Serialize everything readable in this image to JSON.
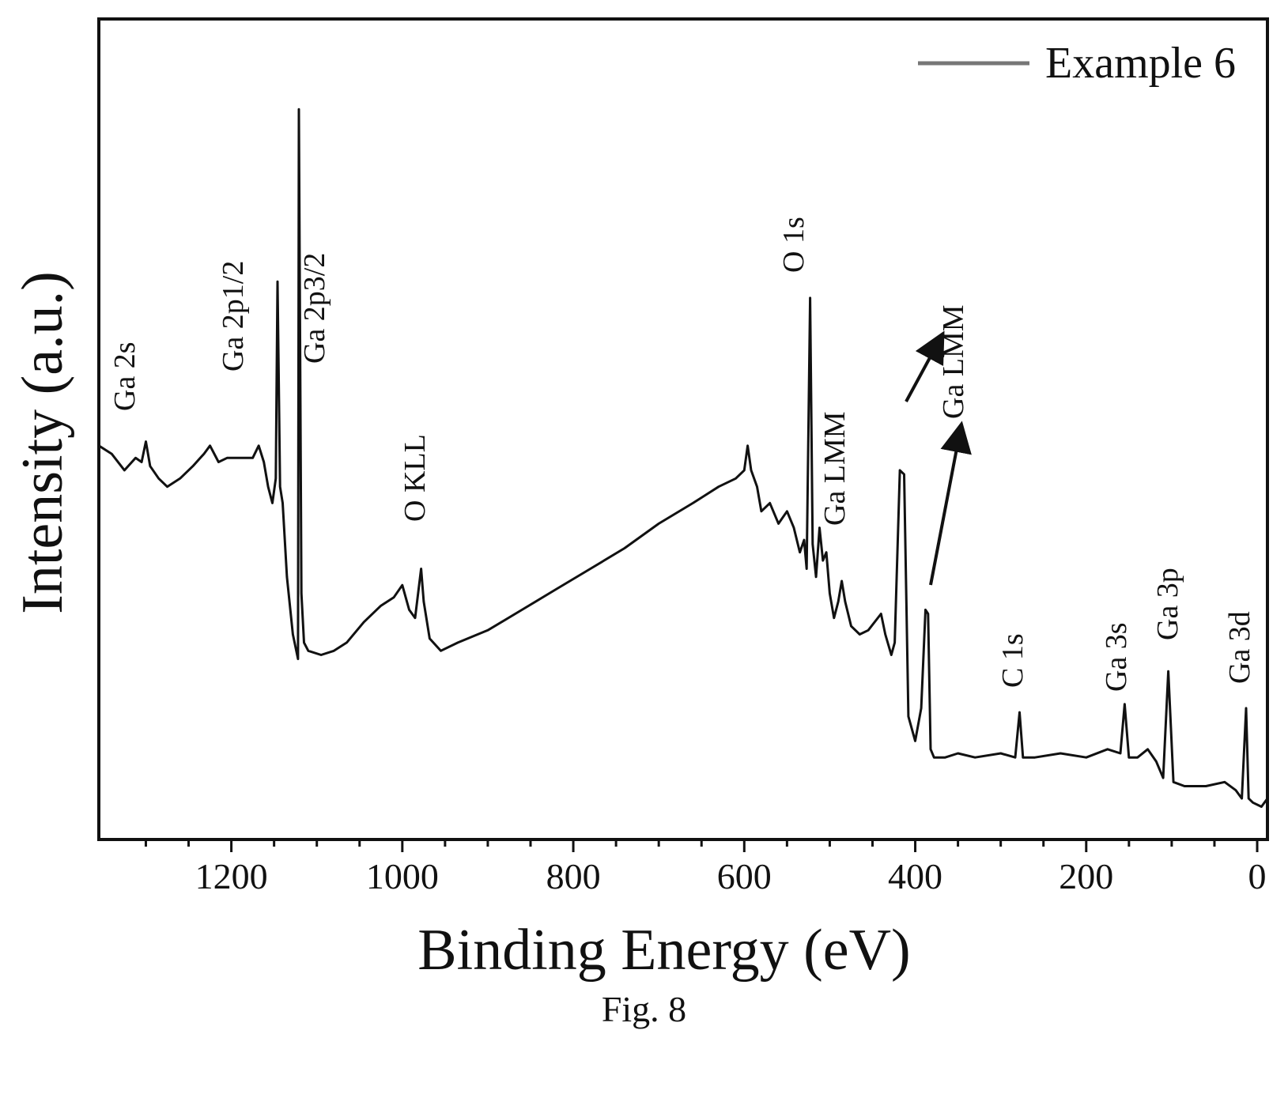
{
  "figure_caption": "Fig. 8",
  "chart_data": {
    "type": "line",
    "title": "",
    "xlabel": "Binding Energy (eV)",
    "ylabel": "Intensity (a.u.)",
    "xlim": [
      1355,
      -12
    ],
    "x_reversed": true,
    "ylim": [
      0,
      100
    ],
    "y_ticks_labeled": false,
    "grid": false,
    "legend": {
      "position": "top-right",
      "entries": [
        "Example 6"
      ]
    },
    "x_ticks": [
      1200,
      1000,
      800,
      600,
      400,
      200,
      0
    ],
    "x_tick_labels": [
      "1200",
      "1000",
      "800",
      "600",
      "400",
      "200",
      "0"
    ],
    "series": [
      {
        "name": "Example 6",
        "color": "#111111",
        "points": [
          [
            1355,
            48
          ],
          [
            1340,
            47
          ],
          [
            1325,
            45
          ],
          [
            1312,
            46.5
          ],
          [
            1305,
            46
          ],
          [
            1300,
            48.5
          ],
          [
            1295,
            45.5
          ],
          [
            1285,
            44
          ],
          [
            1275,
            43
          ],
          [
            1260,
            44
          ],
          [
            1245,
            45.5
          ],
          [
            1232,
            47
          ],
          [
            1225,
            48
          ],
          [
            1215,
            46
          ],
          [
            1205,
            46.5
          ],
          [
            1190,
            46.5
          ],
          [
            1175,
            46.5
          ],
          [
            1168,
            48
          ],
          [
            1162,
            46
          ],
          [
            1157,
            43
          ],
          [
            1152,
            41
          ],
          [
            1148,
            44
          ],
          [
            1146,
            68
          ],
          [
            1143,
            43
          ],
          [
            1140,
            41
          ],
          [
            1135,
            32
          ],
          [
            1128,
            25
          ],
          [
            1122,
            22
          ],
          [
            1121,
            89
          ],
          [
            1118,
            30
          ],
          [
            1115,
            24
          ],
          [
            1110,
            23
          ],
          [
            1095,
            22.5
          ],
          [
            1080,
            23
          ],
          [
            1065,
            24
          ],
          [
            1045,
            26.5
          ],
          [
            1025,
            28.5
          ],
          [
            1010,
            29.5
          ],
          [
            1000,
            31
          ],
          [
            992,
            28
          ],
          [
            985,
            27
          ],
          [
            978,
            33
          ],
          [
            975,
            29
          ],
          [
            968,
            24.5
          ],
          [
            955,
            23
          ],
          [
            935,
            24
          ],
          [
            900,
            25.5
          ],
          [
            860,
            28
          ],
          [
            820,
            30.5
          ],
          [
            780,
            33
          ],
          [
            740,
            35.5
          ],
          [
            700,
            38.5
          ],
          [
            660,
            41
          ],
          [
            630,
            43
          ],
          [
            610,
            44
          ],
          [
            600,
            45
          ],
          [
            596,
            48
          ],
          [
            592,
            45
          ],
          [
            585,
            43
          ],
          [
            580,
            40
          ],
          [
            570,
            41
          ],
          [
            560,
            38.5
          ],
          [
            550,
            40
          ],
          [
            542,
            38
          ],
          [
            535,
            35
          ],
          [
            530,
            36.5
          ],
          [
            527,
            33
          ],
          [
            523,
            66
          ],
          [
            520,
            36
          ],
          [
            516,
            32
          ],
          [
            512,
            38
          ],
          [
            508,
            34
          ],
          [
            504,
            35
          ],
          [
            500,
            30
          ],
          [
            495,
            27
          ],
          [
            490,
            29
          ],
          [
            486,
            31.5
          ],
          [
            482,
            29
          ],
          [
            475,
            26
          ],
          [
            465,
            25
          ],
          [
            455,
            25.5
          ],
          [
            440,
            27.5
          ],
          [
            435,
            25
          ],
          [
            428,
            22.5
          ],
          [
            424,
            24
          ],
          [
            418,
            45
          ],
          [
            413,
            44.5
          ],
          [
            408,
            15
          ],
          [
            400,
            12
          ],
          [
            393,
            16
          ],
          [
            388,
            28
          ],
          [
            385,
            27.5
          ],
          [
            382,
            11
          ],
          [
            378,
            10
          ],
          [
            365,
            10
          ],
          [
            350,
            10.5
          ],
          [
            330,
            10
          ],
          [
            300,
            10.5
          ],
          [
            283,
            10
          ],
          [
            278,
            15.5
          ],
          [
            274,
            10
          ],
          [
            260,
            10
          ],
          [
            230,
            10.5
          ],
          [
            200,
            10
          ],
          [
            175,
            11
          ],
          [
            160,
            10.5
          ],
          [
            155,
            16.5
          ],
          [
            150,
            10
          ],
          [
            140,
            10
          ],
          [
            128,
            11
          ],
          [
            118,
            9.5
          ],
          [
            110,
            7.5
          ],
          [
            104,
            20.5
          ],
          [
            98,
            7
          ],
          [
            85,
            6.5
          ],
          [
            60,
            6.5
          ],
          [
            38,
            7
          ],
          [
            25,
            6
          ],
          [
            18,
            5
          ],
          [
            13,
            16
          ],
          [
            10,
            5
          ],
          [
            5,
            4.5
          ],
          [
            -5,
            4
          ],
          [
            -12,
            5
          ]
        ]
      }
    ],
    "annotations": [
      {
        "text": "Ga 2s",
        "x": 1300
      },
      {
        "text": "Ga 2p1/2",
        "x": 1146
      },
      {
        "text": "Ga 2p3/2",
        "x": 1121
      },
      {
        "text": "O KLL",
        "x": 978
      },
      {
        "text": "O 1s",
        "x": 523
      },
      {
        "text": "Ga LMM",
        "x": 486
      },
      {
        "text": "Ga LMM",
        "x": 388
      },
      {
        "text": "C 1s",
        "x": 278
      },
      {
        "text": "Ga 3s",
        "x": 155
      },
      {
        "text": "Ga 3p",
        "x": 104
      },
      {
        "text": "Ga 3d",
        "x": 13
      }
    ]
  }
}
